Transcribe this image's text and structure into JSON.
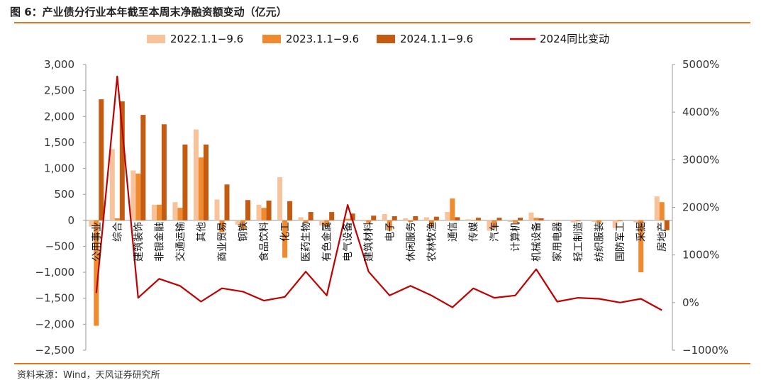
{
  "title": "图 6：产业债分行业本年截至本周末净融资额变动（亿元）",
  "source": "资料来源：Wind，天风证券研究所",
  "colors": {
    "s2022": "#f8c39a",
    "s2023": "#ef8a2e",
    "s2024": "#c55a11",
    "yoy": "#c00000",
    "rule": "#e8731d"
  },
  "chart_data": {
    "type": "bar",
    "title": "图 6：产业债分行业本年截至本周末净融资额变动（亿元）",
    "categories": [
      "公用事业",
      "综合",
      "建筑装饰",
      "非银金融",
      "交通运输",
      "其他",
      "商业贸易",
      "钢铁",
      "食品饮料",
      "化工",
      "医药生物",
      "有色金属",
      "电气设备",
      "建筑材料",
      "电子",
      "休闲服务",
      "农林牧渔",
      "通信",
      "传媒",
      "汽车",
      "计算机",
      "机械设备",
      "家用电器",
      "轻工制造",
      "纺织服装",
      "国防军工",
      "采掘",
      "房地产"
    ],
    "series": [
      {
        "name": "2022.1.1−9.6",
        "axis": "left",
        "type": "bar",
        "values": [
          -120,
          1370,
          960,
          300,
          350,
          1750,
          400,
          -80,
          300,
          830,
          60,
          -100,
          -20,
          -20,
          120,
          40,
          60,
          160,
          20,
          -200,
          -30,
          150,
          -10,
          -40,
          -30,
          -150,
          -40,
          460
        ]
      },
      {
        "name": "2023.1.1−9.6",
        "axis": "left",
        "type": "bar",
        "values": [
          -2030,
          40,
          900,
          300,
          240,
          1210,
          -230,
          -180,
          240,
          -720,
          -40,
          -120,
          30,
          -50,
          -200,
          -30,
          -130,
          420,
          10,
          -150,
          -50,
          50,
          -10,
          -20,
          -50,
          -20,
          -1000,
          350
        ]
      },
      {
        "name": "2024.1.1−9.6",
        "axis": "left",
        "type": "bar",
        "values": [
          2330,
          2290,
          2030,
          1850,
          1460,
          1460,
          690,
          390,
          380,
          370,
          160,
          160,
          130,
          90,
          80,
          80,
          70,
          60,
          50,
          50,
          50,
          40,
          0,
          0,
          0,
          0,
          0,
          -190
        ]
      },
      {
        "name": "2024同比变动",
        "axis": "right",
        "type": "line",
        "values": [
          200,
          4750,
          100,
          500,
          350,
          20,
          300,
          230,
          40,
          120,
          650,
          150,
          2050,
          650,
          150,
          350,
          150,
          -100,
          300,
          100,
          150,
          700,
          20,
          100,
          80,
          0,
          80,
          -160
        ]
      }
    ],
    "y_left": {
      "min": -2500,
      "max": 3000,
      "step": 500,
      "tick_labels": [
        "−2,500",
        "−2,000",
        "−1,500",
        "−1,000",
        "−500",
        "0",
        "500",
        "1,000",
        "1,500",
        "2,000",
        "2,500",
        "3,000"
      ]
    },
    "y_right": {
      "min": -1000,
      "max": 5000,
      "step": 1000,
      "tick_labels": [
        "−1000%",
        "0%",
        "1000%",
        "2000%",
        "3000%",
        "4000%",
        "5000%"
      ]
    },
    "legend": {
      "position": "top",
      "entries": [
        "2022.1.1−9.6",
        "2023.1.1−9.6",
        "2024.1.1−9.6",
        "2024同比变动"
      ]
    },
    "grid": false
  }
}
